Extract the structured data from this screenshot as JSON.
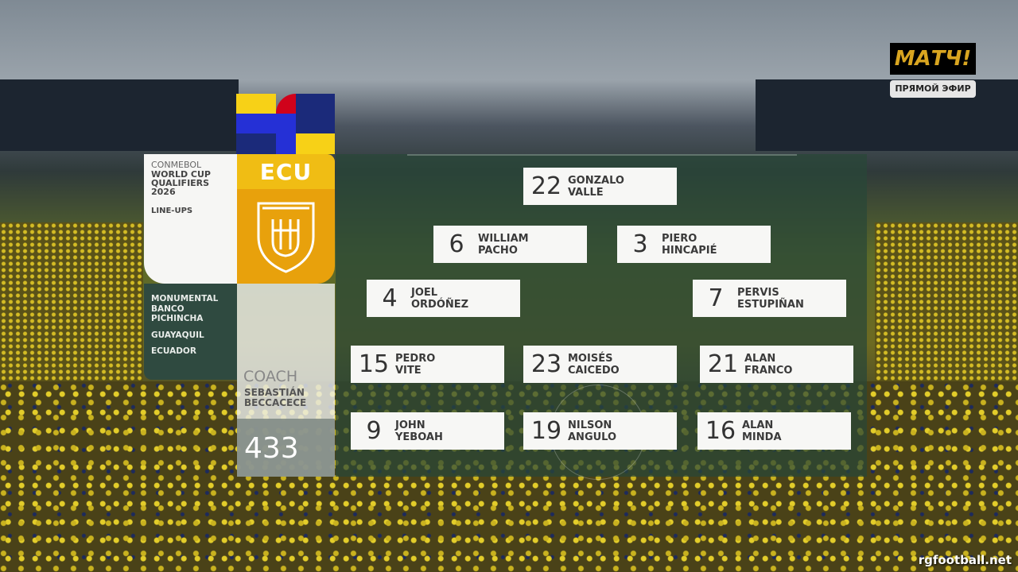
{
  "broadcaster": {
    "logo": "МАТЧ!",
    "live_label": "ПРЯМОЙ ЭФИР"
  },
  "competition": {
    "org": "CONMEBOL",
    "title_line1": "WORLD CUP",
    "title_line2": "QUALIFIERS",
    "year": "2026",
    "section": "LINE-UPS"
  },
  "venue": {
    "stadium_line1": "MONUMENTAL",
    "stadium_line2": "BANCO",
    "stadium_line3": "PICHINCHA",
    "city": "GUAYAQUIL",
    "country": "ECUADOR"
  },
  "team": {
    "code": "ECU",
    "crest": "ecuador-fef-crest",
    "colors": {
      "yellow": "#f0bd14",
      "blue": "#1b2a7a",
      "red": "#d0021b"
    }
  },
  "coach": {
    "label": "COACH",
    "first": "SEBASTIÁN",
    "last": "BECCACECE"
  },
  "formation": "433",
  "players": [
    {
      "number": "22",
      "first": "GONZALO",
      "last": "VALLE"
    },
    {
      "number": "6",
      "first": "WILLIAM",
      "last": "PACHO"
    },
    {
      "number": "3",
      "first": "PIERO",
      "last": "HINCAPIÉ"
    },
    {
      "number": "4",
      "first": "JOEL",
      "last": "ORDÓÑEZ"
    },
    {
      "number": "7",
      "first": "PERVIS",
      "last": "ESTUPIÑAN"
    },
    {
      "number": "15",
      "first": "PEDRO",
      "last": "VITE"
    },
    {
      "number": "23",
      "first": "MOISÉS",
      "last": "CAICEDO"
    },
    {
      "number": "21",
      "first": "ALAN",
      "last": "FRANCO"
    },
    {
      "number": "9",
      "first": "JOHN",
      "last": "YEBOAH"
    },
    {
      "number": "19",
      "first": "NILSON",
      "last": "ANGULO"
    },
    {
      "number": "16",
      "first": "ALAN",
      "last": "MINDA"
    }
  ],
  "watermark": "rgfootball.net"
}
